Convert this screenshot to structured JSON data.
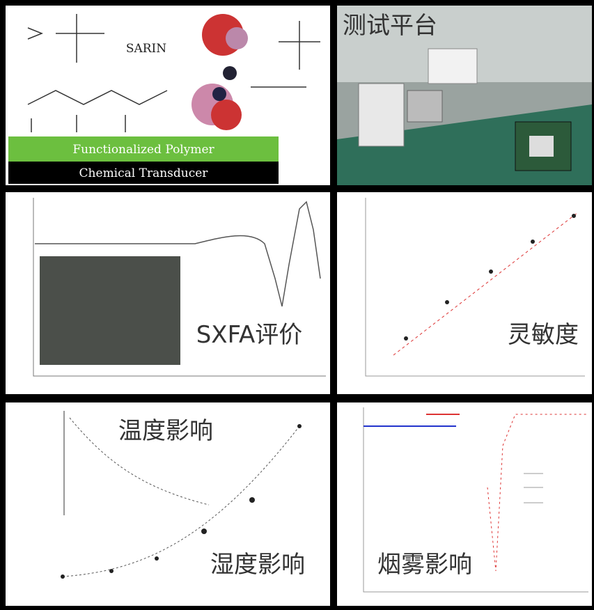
{
  "chemistry": {
    "agent": "SARIN",
    "layers": [
      "Functionalized Polymer",
      "Chemical Transducer"
    ]
  },
  "platform": {
    "title": "测试平台"
  },
  "spectrum": {
    "title": "SXFA评价"
  },
  "sensitivity": {
    "title": "灵敏度"
  },
  "environment": {
    "temperature": "温度影响",
    "humidity": "湿度影响"
  },
  "smoke": {
    "title": "烟雾影响"
  }
}
